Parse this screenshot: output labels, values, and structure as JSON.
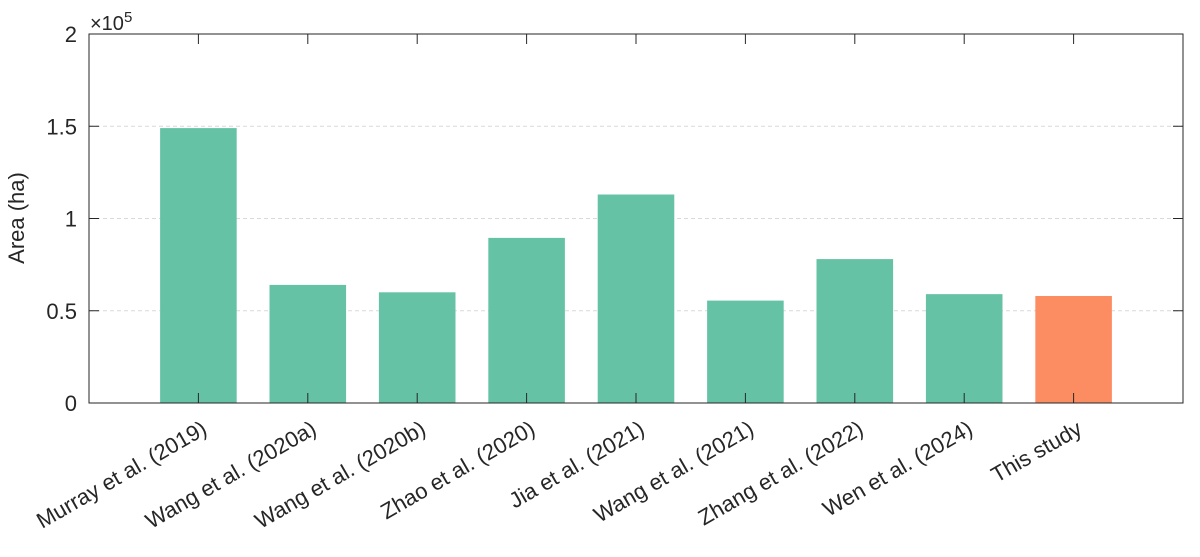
{
  "chart_data": {
    "type": "bar",
    "title": "",
    "xlabel": "",
    "ylabel": "Area (ha)",
    "y_exponent_base": "×10",
    "y_exponent_power": "5",
    "ylim": [
      0,
      2
    ],
    "yticks": [
      0,
      0.5,
      1,
      1.5,
      2
    ],
    "ytick_labels": [
      "0",
      "0.5",
      "1",
      "1.5",
      "2"
    ],
    "grid": "horizontal-dashed",
    "categories": [
      "Murray et al. (2019)",
      "Wang et al. (2020a)",
      "Wang et al. (2020b)",
      "Zhao et al. (2020)",
      "Jia et al. (2021)",
      "Wang et al. (2021)",
      "Zhang et al. (2022)",
      "Wen et al. (2024)",
      "This study"
    ],
    "values": [
      1.49,
      0.64,
      0.6,
      0.895,
      1.13,
      0.555,
      0.78,
      0.59,
      0.58
    ],
    "colors": [
      "#66c2a5",
      "#66c2a5",
      "#66c2a5",
      "#66c2a5",
      "#66c2a5",
      "#66c2a5",
      "#66c2a5",
      "#66c2a5",
      "#fc8d62"
    ]
  }
}
